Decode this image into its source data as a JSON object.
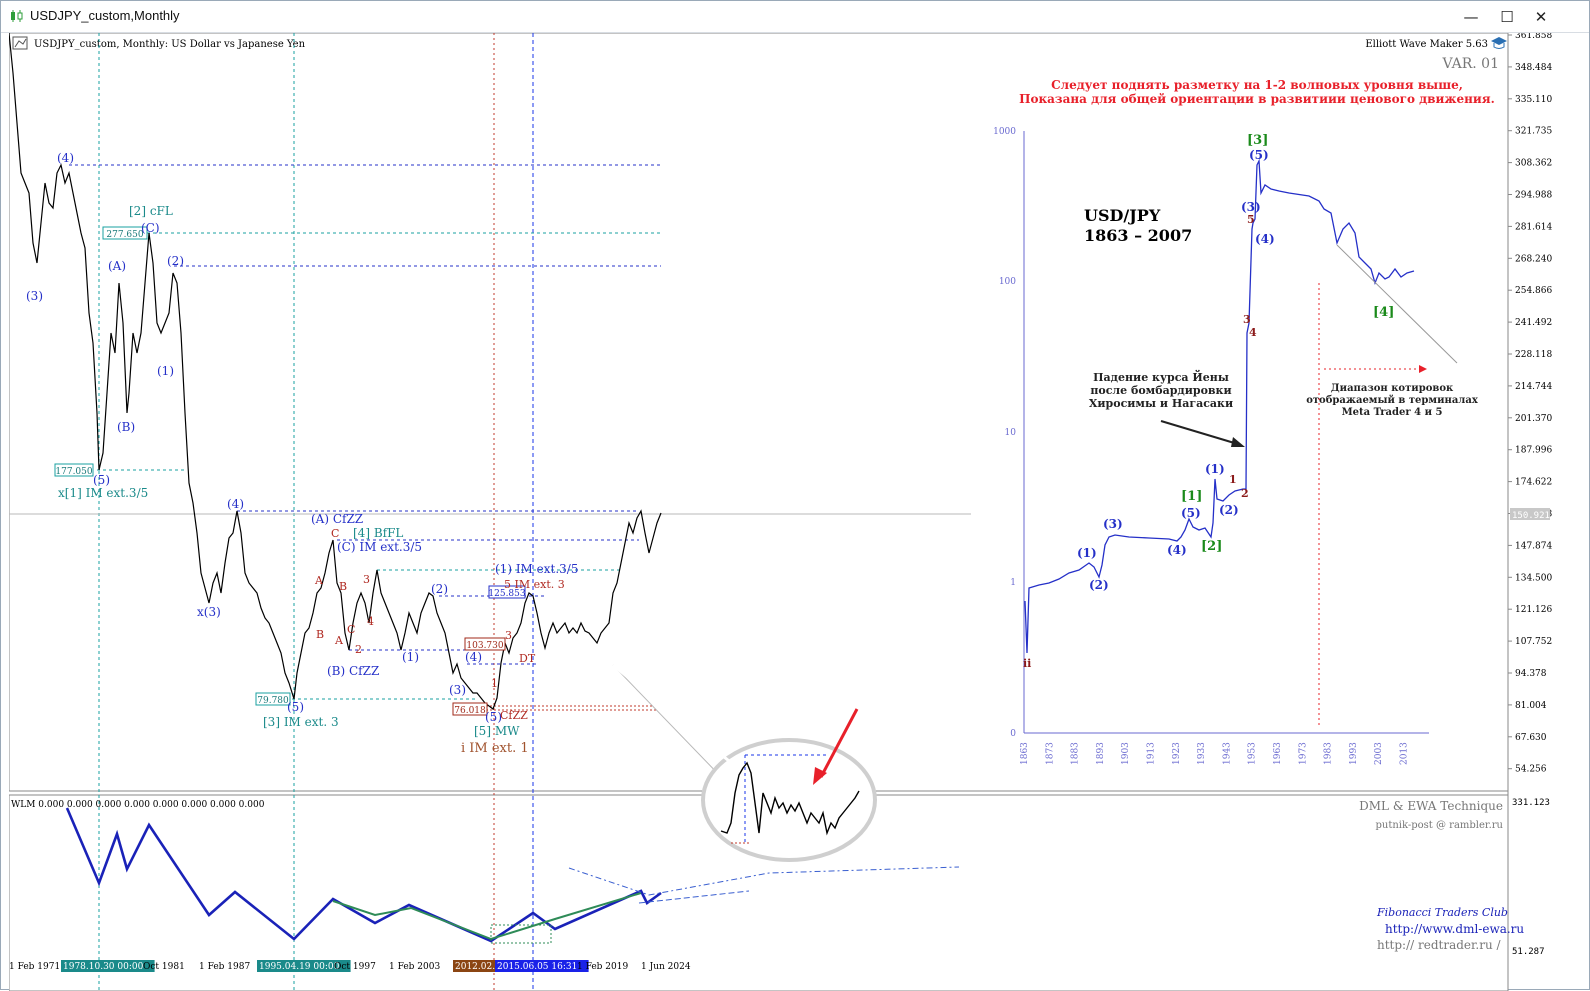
{
  "window": {
    "title": "USDJPY_custom,Monthly",
    "minimize_glyph": "—",
    "maximize_glyph": "☐",
    "close_glyph": "✕"
  },
  "chart_header": {
    "symbol_desc": "USDJPY_custom, Monthly:  US Dollar vs Japanese Yen",
    "indicator_name": "Elliott Wave Maker 5.63",
    "variant": "VAR. 01"
  },
  "notice": {
    "line1": "Следует поднять разметку на 1-2 волновых уровня выше,",
    "line2": "Показана для общей ориентации в развитиии ценового движения.",
    "color": "#e8202a"
  },
  "price_axis": {
    "labels": [
      "361.858",
      "348.484",
      "335.110",
      "321.735",
      "308.362",
      "294.988",
      "281.614",
      "268.240",
      "254.866",
      "241.492",
      "228.118",
      "214.744",
      "201.370",
      "187.996",
      "174.622",
      "161.248",
      "147.874",
      "134.500",
      "121.126",
      "107.752",
      "94.378",
      "81.004",
      "67.630",
      "54.256"
    ],
    "current_price": "150.921"
  },
  "time_axis": {
    "labels": [
      "1 Feb 1971",
      "1978.10.30 00:00",
      "Oct 1981",
      "1 Feb 1987",
      "1995.04.19 00:00",
      "Oct 1997",
      "1 Feb 2003",
      "2012.02.",
      "2015.06.05 16:31",
      "1 Feb 2019",
      "1 Jun 2024"
    ]
  },
  "price_boxes": [
    "277.650",
    "177.050",
    "79.780",
    "103.730",
    "125.853",
    "76.018"
  ],
  "wave_labels_blue": [
    "(4)",
    "(3)",
    "(A)",
    "(C)",
    "(2)",
    "(1)",
    "(B)",
    "(5)",
    "(4)",
    "x(3)",
    "(A) CfZZ",
    "(C) IM ext.3/5",
    "(B) CfZZ",
    "(5)",
    "(2)",
    "(1)",
    "(4)",
    "(3)",
    "(5)",
    "(1) IM ext.3/5"
  ],
  "wave_labels_teal": [
    "[2] cFL",
    "x[1] IM ext.3/5",
    "[3] IM ext. 3",
    "[4] BfFL",
    "[5] MW"
  ],
  "wave_labels_red": [
    "C",
    "A",
    "B",
    "B",
    "A",
    "C",
    "3",
    "4",
    "2",
    "5 IM ext. 3",
    "3",
    "DT",
    "1",
    "CfZZ"
  ],
  "main_label": "i IM ext. 1",
  "inset": {
    "title_line1": "USD/JPY",
    "title_line2": "1863 – 2007",
    "y_labels": [
      "1000",
      "100",
      "10",
      "1",
      "0"
    ],
    "x_labels": [
      "1863",
      "1873",
      "1883",
      "1893",
      "1903",
      "1913",
      "1923",
      "1933",
      "1943",
      "1953",
      "1963",
      "1973",
      "1983",
      "1993",
      "2003",
      "2013"
    ],
    "blue_labels": [
      "(1)",
      "(2)",
      "(3)",
      "(4)",
      "(5)",
      "(1)",
      "(2)",
      "(3)",
      "(4)",
      "(5)"
    ],
    "green_labels": [
      "[1]",
      "[2]",
      "[3]",
      "[4]"
    ],
    "brown_labels": [
      "ii",
      "1",
      "2",
      "3",
      "4",
      "5"
    ],
    "annot_yen": [
      "Падение курса Йены",
      "после бомбардировки",
      "Хиросимы и Нагасаки"
    ],
    "annot_range": [
      "Диапазон котировок",
      "отображаемый в терминалах",
      "Meta Trader 4 и 5"
    ]
  },
  "sub_window": {
    "label": "WLM 0.000  0.000  0.000  0.000  0.000  0.000  0.000  0.000",
    "axis_top": "331.123",
    "axis_bottom": "51.287",
    "credit1": "DML & EWA Technique",
    "credit2": "putnik-post @ rambler.ru",
    "credit3": "Fibonacci    Traders    Club",
    "credit4": "http://www.dml-ewa.ru",
    "credit5": "http://  redtrader.ru  /"
  }
}
